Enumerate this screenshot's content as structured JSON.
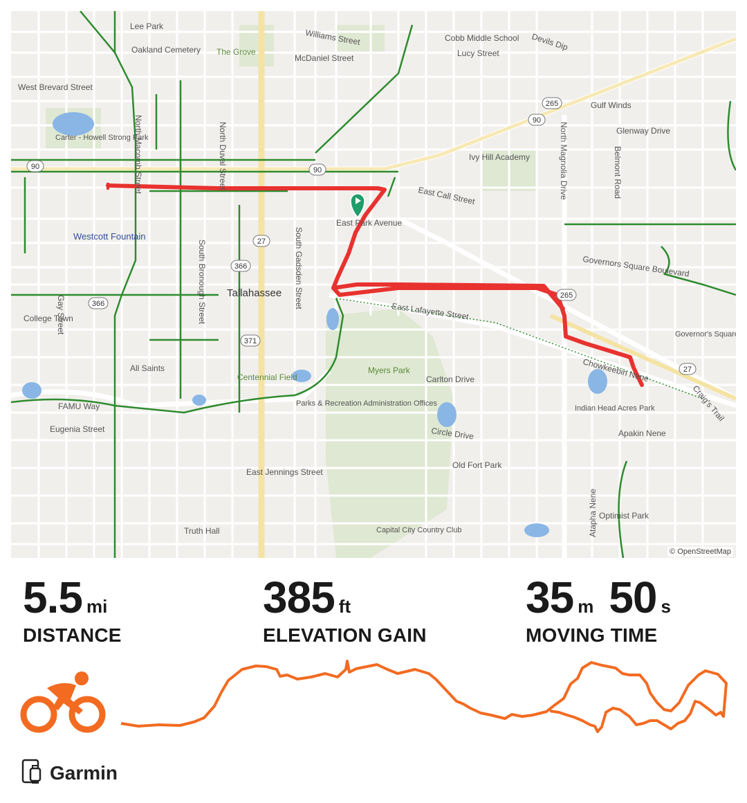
{
  "map": {
    "attribution": "© OpenStreetMap",
    "labels": [
      {
        "text": "Lee Park"
      },
      {
        "text": "Oakland Cemetery"
      },
      {
        "text": "The Grove"
      },
      {
        "text": "Williams Street"
      },
      {
        "text": "McDaniel Street"
      },
      {
        "text": "Cobb Middle School"
      },
      {
        "text": "Lucy Street"
      },
      {
        "text": "Devils Dip"
      },
      {
        "text": "West Brevard Street"
      },
      {
        "text": "Gulf Winds"
      },
      {
        "text": "Carter - Howell Strong Park"
      },
      {
        "text": "Glenway Drive"
      },
      {
        "text": "Ivy Hill Academy"
      },
      {
        "text": "East Call Street"
      },
      {
        "text": "East Park Avenue"
      },
      {
        "text": "Westcott Fountain"
      },
      {
        "text": "Governors Square Boulevard"
      },
      {
        "text": "Tallahassee"
      },
      {
        "text": "East Lafayette Street"
      },
      {
        "text": "College Town"
      },
      {
        "text": "Governor's Square Mall"
      },
      {
        "text": "All Saints"
      },
      {
        "text": "Centennial Field"
      },
      {
        "text": "Myers Park"
      },
      {
        "text": "Carlton Drive"
      },
      {
        "text": "Chowkeebin Nene"
      },
      {
        "text": "FAMU Way"
      },
      {
        "text": "Parks & Recreation Administration Offices"
      },
      {
        "text": "Indian Head Acres Park"
      },
      {
        "text": "Eugenia Street"
      },
      {
        "text": "Circle Drive"
      },
      {
        "text": "Apakin Nene"
      },
      {
        "text": "Old Fort Park"
      },
      {
        "text": "East Jennings Street"
      },
      {
        "text": "Optimist Park"
      },
      {
        "text": "Capital City Country Club"
      },
      {
        "text": "Truth Hall"
      },
      {
        "text": "North Macomb Street"
      },
      {
        "text": "North Duval Street"
      },
      {
        "text": "South Bronough Street"
      },
      {
        "text": "South Gadsden Street"
      },
      {
        "text": "North Magnolia Drive"
      },
      {
        "text": "Belmont Road"
      },
      {
        "text": "Atapha Nene"
      },
      {
        "text": "Gay Street"
      },
      {
        "text": "Craig's Trail"
      }
    ],
    "shields": [
      "90",
      "90",
      "90",
      "265",
      "265",
      "27",
      "27",
      "366",
      "366",
      "371"
    ]
  },
  "stats": {
    "distance": {
      "value": "5.5",
      "unit": "mi",
      "label": "DISTANCE"
    },
    "elevation": {
      "value": "385",
      "unit": "ft",
      "label": "ELEVATION GAIN"
    },
    "time": {
      "minutes": "35",
      "minutes_unit": "m",
      "seconds": "50",
      "seconds_unit": "s",
      "label": "MOVING TIME"
    }
  },
  "activity": {
    "type_icon": "cycling-icon",
    "accent": "#f26b21"
  },
  "route": {
    "color": "#e8322f",
    "start_marker_color": "#1f9d6b"
  },
  "device": {
    "name": "Garmin",
    "icon": "watch-phone-icon"
  }
}
